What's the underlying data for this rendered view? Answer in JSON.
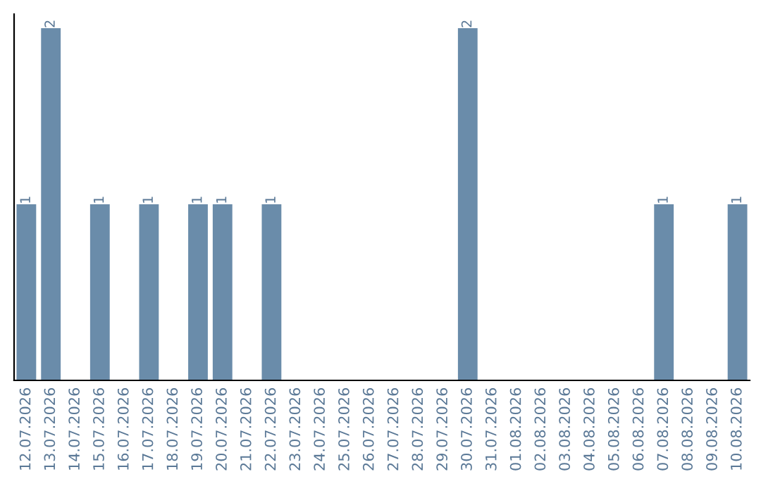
{
  "chart_data": {
    "type": "bar",
    "categories": [
      "12.07.2026",
      "13.07.2026",
      "14.07.2026",
      "15.07.2026",
      "16.07.2026",
      "17.07.2026",
      "18.07.2026",
      "19.07.2026",
      "20.07.2026",
      "21.07.2026",
      "22.07.2026",
      "23.07.2026",
      "24.07.2026",
      "25.07.2026",
      "26.07.2026",
      "27.07.2026",
      "28.07.2026",
      "29.07.2026",
      "30.07.2026",
      "31.07.2026",
      "01.08.2026",
      "02.08.2026",
      "03.08.2026",
      "04.08.2026",
      "05.08.2026",
      "06.08.2026",
      "07.08.2026",
      "08.08.2026",
      "09.08.2026",
      "10.08.2026"
    ],
    "values": [
      1,
      2,
      0,
      1,
      0,
      1,
      0,
      1,
      1,
      0,
      1,
      0,
      0,
      0,
      0,
      0,
      0,
      0,
      2,
      0,
      0,
      0,
      0,
      0,
      0,
      0,
      1,
      0,
      0,
      1
    ],
    "value_labels": [
      "1",
      "2",
      null,
      "1",
      null,
      "1",
      null,
      "1",
      "1",
      null,
      "1",
      null,
      null,
      null,
      null,
      null,
      null,
      null,
      "2",
      null,
      null,
      null,
      null,
      null,
      null,
      null,
      "1",
      null,
      null,
      "1"
    ],
    "color": "#6a8caa",
    "ylim": [
      0,
      2.08
    ],
    "tick_labels": "x",
    "grid": false,
    "legend": false
  }
}
